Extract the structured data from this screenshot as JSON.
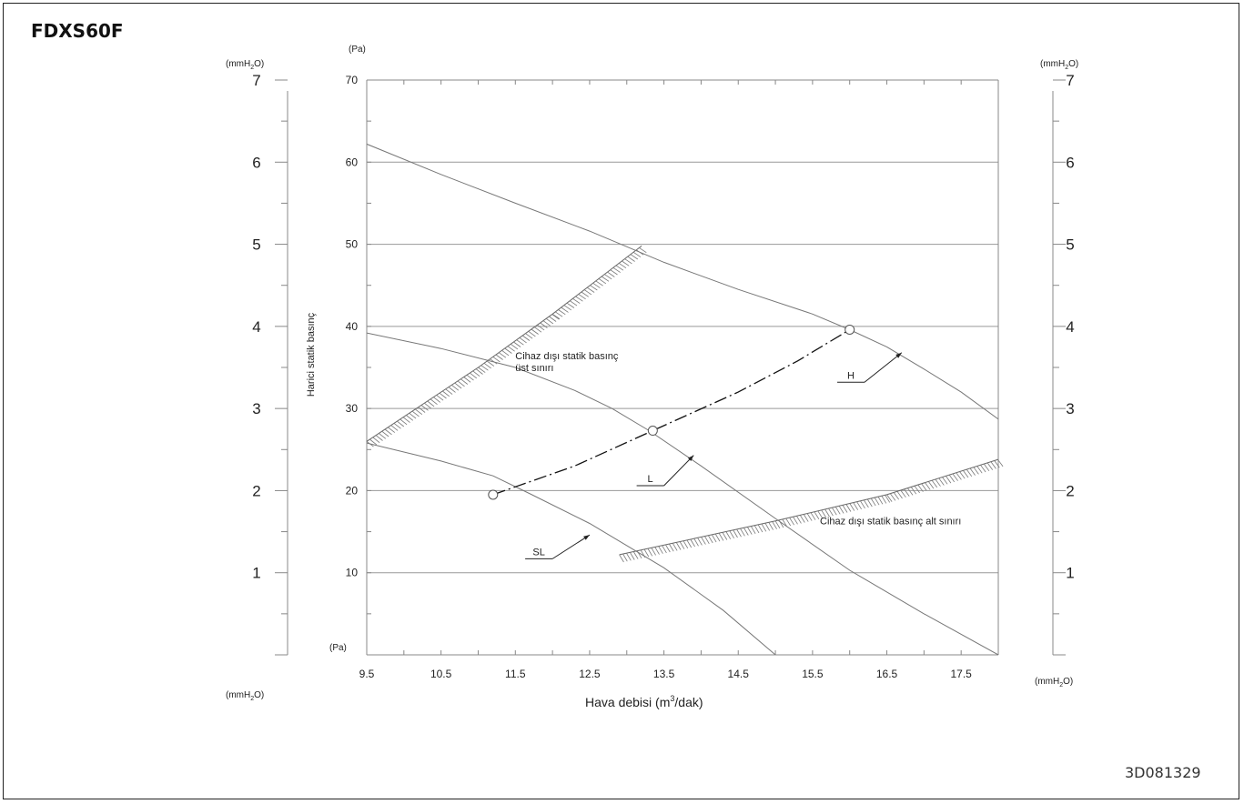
{
  "header": {
    "model": "FDXS60F",
    "drawing_code": "3D081329"
  },
  "chart_data": {
    "type": "line",
    "xlabel_prefix": "Hava debisi (m",
    "xlabel_sup": "3",
    "xlabel_suffix": "/dak)",
    "ylabel": "Harici statik basınç",
    "y_unit_pa": "(Pa)",
    "y_unit_mm_prefix": "(mmH",
    "y_unit_mm_sub": "2",
    "y_unit_mm_suffix": "O)",
    "xlim": [
      9.5,
      18.0
    ],
    "ylim_pa": [
      0,
      70
    ],
    "ylim_mmh2o": [
      0,
      7
    ],
    "x_ticks": [
      "9.5",
      "10.5",
      "11.5",
      "12.5",
      "13.5",
      "14.5",
      "15.5",
      "16.5",
      "17.5"
    ],
    "y_ticks_pa": [
      "10",
      "20",
      "30",
      "40",
      "50",
      "60",
      "70"
    ],
    "y_ticks_mm": [
      "1",
      "2",
      "3",
      "4",
      "5",
      "6",
      "7"
    ],
    "grid_pa": [
      10,
      20,
      30,
      40,
      50,
      60
    ],
    "series": [
      {
        "name": "H",
        "style": "solid",
        "points": [
          [
            9.5,
            62.2
          ],
          [
            10.5,
            58.5
          ],
          [
            11.5,
            55.0
          ],
          [
            12.5,
            51.6
          ],
          [
            13.5,
            47.8
          ],
          [
            14.5,
            44.5
          ],
          [
            15.5,
            41.5
          ],
          [
            16.0,
            39.6
          ],
          [
            16.5,
            37.5
          ],
          [
            17.0,
            34.8
          ],
          [
            17.5,
            32.0
          ],
          [
            18.0,
            28.7
          ]
        ]
      },
      {
        "name": "L",
        "style": "solid",
        "points": [
          [
            9.5,
            39.2
          ],
          [
            10.5,
            37.3
          ],
          [
            11.5,
            35.0
          ],
          [
            12.3,
            32.2
          ],
          [
            12.8,
            30.0
          ],
          [
            13.3,
            27.3
          ],
          [
            14.0,
            23.0
          ],
          [
            15.0,
            16.6
          ],
          [
            16.0,
            10.3
          ],
          [
            17.0,
            5.0
          ],
          [
            18.0,
            0.0
          ]
        ]
      },
      {
        "name": "SL",
        "style": "solid",
        "points": [
          [
            9.5,
            25.8
          ],
          [
            10.5,
            23.6
          ],
          [
            11.2,
            21.8
          ],
          [
            11.7,
            19.6
          ],
          [
            12.5,
            16.0
          ],
          [
            13.5,
            10.6
          ],
          [
            14.3,
            5.4
          ],
          [
            15.0,
            0.0
          ]
        ]
      },
      {
        "name": "operating-line",
        "style": "dashdot",
        "points": [
          [
            11.2,
            19.5
          ],
          [
            12.3,
            23.0
          ],
          [
            13.35,
            27.3
          ],
          [
            14.5,
            32.0
          ],
          [
            15.3,
            35.8
          ],
          [
            16.0,
            39.6
          ]
        ]
      }
    ],
    "markers": [
      [
        11.2,
        19.5
      ],
      [
        13.35,
        27.3
      ],
      [
        16.0,
        39.6
      ]
    ],
    "upper_limit_band": {
      "points": [
        [
          9.5,
          26.0
        ],
        [
          11.0,
          35.0
        ],
        [
          12.0,
          41.5
        ],
        [
          13.2,
          49.8
        ]
      ]
    },
    "lower_limit_band": {
      "points": [
        [
          12.9,
          12.2
        ],
        [
          15.0,
          16.3
        ],
        [
          16.5,
          19.5
        ],
        [
          18.0,
          23.8
        ]
      ]
    },
    "series_labels": [
      {
        "text": "H",
        "anchor": [
          16.7,
          36.8
        ],
        "end": [
          16.2,
          33.2
        ]
      },
      {
        "text": "L",
        "anchor": [
          13.9,
          24.3
        ],
        "end": [
          13.5,
          20.6
        ]
      },
      {
        "text": "SL",
        "anchor": [
          12.5,
          14.6
        ],
        "end": [
          12.0,
          11.7
        ]
      }
    ],
    "annotations": [
      {
        "line1": "Cihaz dışı statik basınç",
        "line2": "üst sınırı",
        "at": [
          11.5,
          36.0
        ]
      },
      {
        "line1": "Cihaz dışı statik basınç alt sınırı",
        "at": [
          15.6,
          15.9
        ]
      }
    ]
  }
}
